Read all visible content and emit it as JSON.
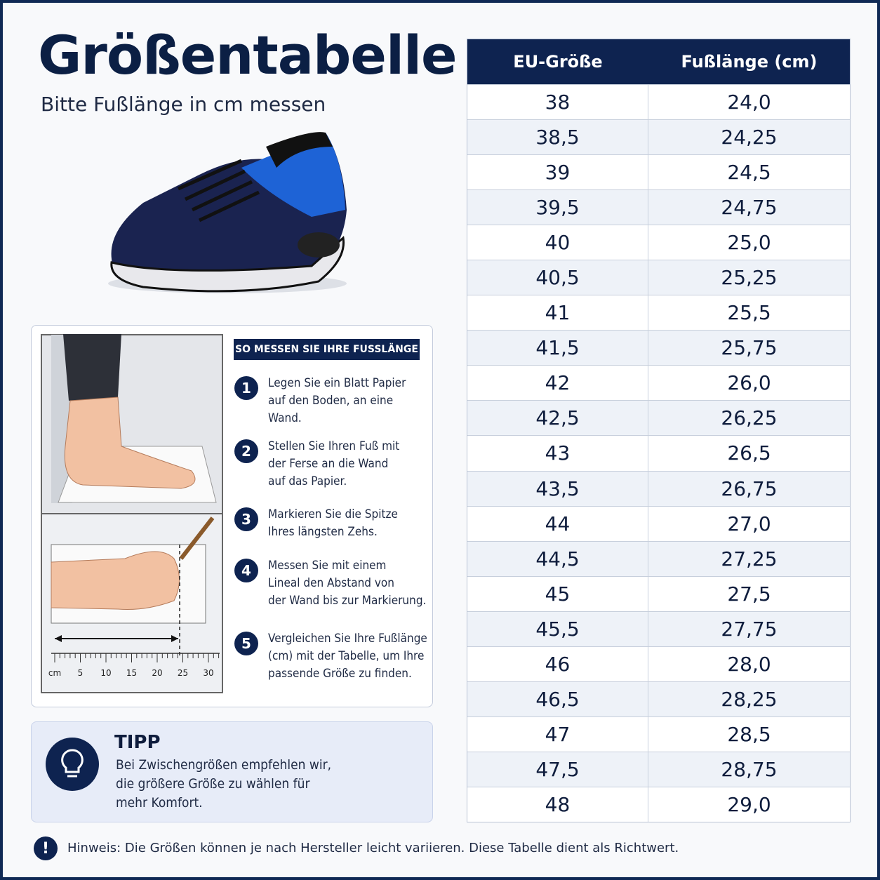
{
  "header": {
    "title": "Größentabelle",
    "subtitle": "Bitte Fußlänge in cm messen"
  },
  "table": {
    "headers": [
      "EU-Größe",
      "Fußlänge (cm)"
    ],
    "rows": [
      [
        "38",
        "24,0"
      ],
      [
        "38,5",
        "24,25"
      ],
      [
        "39",
        "24,5"
      ],
      [
        "39,5",
        "24,75"
      ],
      [
        "40",
        "25,0"
      ],
      [
        "40,5",
        "25,25"
      ],
      [
        "41",
        "25,5"
      ],
      [
        "41,5",
        "25,75"
      ],
      [
        "42",
        "26,0"
      ],
      [
        "42,5",
        "26,25"
      ],
      [
        "43",
        "26,5"
      ],
      [
        "43,5",
        "26,75"
      ],
      [
        "44",
        "27,0"
      ],
      [
        "44,5",
        "27,25"
      ],
      [
        "45",
        "27,5"
      ],
      [
        "45,5",
        "27,75"
      ],
      [
        "46",
        "28,0"
      ],
      [
        "46,5",
        "28,25"
      ],
      [
        "47",
        "28,5"
      ],
      [
        "47,5",
        "28,75"
      ],
      [
        "48",
        "29,0"
      ]
    ]
  },
  "instructions": {
    "title": "SO MESSEN SIE IHRE FUSSLÄNGE",
    "steps": [
      {
        "number": "1",
        "lines": [
          "Legen Sie ein Blatt Papier",
          "auf den Boden, an eine",
          "Wand."
        ]
      },
      {
        "number": "2",
        "lines": [
          "Stellen Sie Ihren Fuß mit",
          "der Ferse an die Wand",
          "auf das Papier."
        ]
      },
      {
        "number": "3",
        "lines": [
          "Markieren Sie die Spitze",
          "Ihres längsten Zehs."
        ]
      },
      {
        "number": "4",
        "lines": [
          "Messen Sie mit einem",
          "Lineal den Abstand von",
          "der Wand bis zur Markierung."
        ]
      },
      {
        "number": "5",
        "lines": [
          "Vergleichen Sie Ihre Fußlänge",
          "(cm) mit der Tabelle, um Ihre",
          "passende Größe zu finden."
        ]
      }
    ]
  },
  "ruler": {
    "labels": [
      "cm",
      "5",
      "10",
      "15",
      "20",
      "25",
      "30"
    ]
  },
  "tip": {
    "title": "TIPP",
    "lines": [
      "Bei Zwischengrößen empfehlen wir,",
      "die größere Größe zu wählen für",
      "mehr Komfort."
    ]
  },
  "note": {
    "icon": "!",
    "text": "Hinweis: Die Größen können je nach Hersteller leicht variieren. Diese Tabelle dient als Richtwert."
  }
}
